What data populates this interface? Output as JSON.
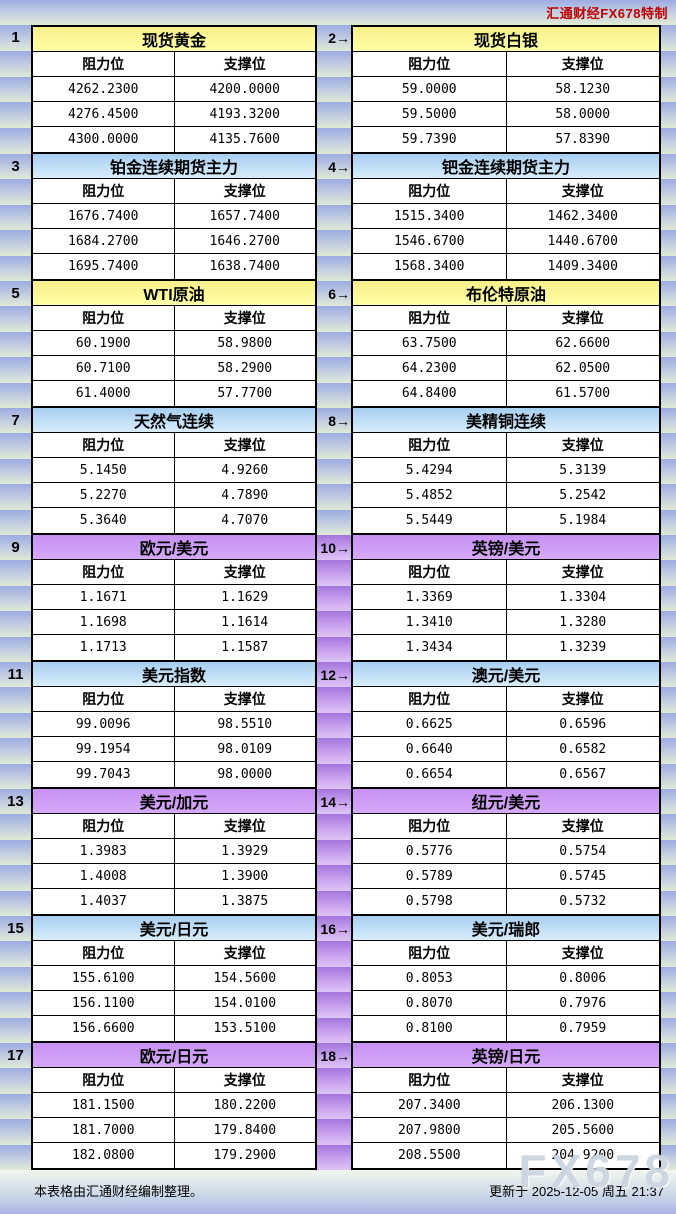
{
  "header": {
    "brand": "汇通财经FX678特制"
  },
  "labels": {
    "resistance": "阻力位",
    "support": "支撑位"
  },
  "footer": {
    "left": "本表格由汇通财经编制整理。",
    "right": "更新于 2025-12-05 周五 21:37"
  },
  "watermark": "FX678",
  "colors": {
    "brand_text": "#c00000",
    "yellow_header": "#fbf493",
    "blue_header": "#a6cef0",
    "purple_header": "#c791f3",
    "band_blue_top": "#9dabe2",
    "band_blue_bottom": "#dfead6",
    "band_purple_top": "#a475dd",
    "band_purple_bottom": "#ddc4f5"
  },
  "pairs": [
    {
      "gutter": "blue",
      "left": {
        "num": "1",
        "title": "现货黄金",
        "theme": "yellow",
        "rows": [
          [
            "4262.2300",
            "4200.0000"
          ],
          [
            "4276.4500",
            "4193.3200"
          ],
          [
            "4300.0000",
            "4135.7600"
          ]
        ]
      },
      "right": {
        "label": "2→",
        "title": "现货白银",
        "theme": "yellow",
        "rows": [
          [
            "59.0000",
            "58.1230"
          ],
          [
            "59.5000",
            "58.0000"
          ],
          [
            "59.7390",
            "57.8390"
          ]
        ]
      }
    },
    {
      "gutter": "blue",
      "left": {
        "num": "3",
        "title": "铂金连续期货主力",
        "theme": "blue",
        "rows": [
          [
            "1676.7400",
            "1657.7400"
          ],
          [
            "1684.2700",
            "1646.2700"
          ],
          [
            "1695.7400",
            "1638.7400"
          ]
        ]
      },
      "right": {
        "label": "4→",
        "title": "钯金连续期货主力",
        "theme": "blue",
        "rows": [
          [
            "1515.3400",
            "1462.3400"
          ],
          [
            "1546.6700",
            "1440.6700"
          ],
          [
            "1568.3400",
            "1409.3400"
          ]
        ]
      }
    },
    {
      "gutter": "blue",
      "left": {
        "num": "5",
        "title": "WTI原油",
        "theme": "yellow",
        "rows": [
          [
            "60.1900",
            "58.9800"
          ],
          [
            "60.7100",
            "58.2900"
          ],
          [
            "61.4000",
            "57.7700"
          ]
        ]
      },
      "right": {
        "label": "6→",
        "title": "布伦特原油",
        "theme": "yellow",
        "rows": [
          [
            "63.7500",
            "62.6600"
          ],
          [
            "64.2300",
            "62.0500"
          ],
          [
            "64.8400",
            "61.5700"
          ]
        ]
      }
    },
    {
      "gutter": "blue",
      "left": {
        "num": "7",
        "title": "天然气连续",
        "theme": "blue",
        "rows": [
          [
            "5.1450",
            "4.9260"
          ],
          [
            "5.2270",
            "4.7890"
          ],
          [
            "5.3640",
            "4.7070"
          ]
        ]
      },
      "right": {
        "label": "8→",
        "title": "美精铜连续",
        "theme": "blue",
        "rows": [
          [
            "5.4294",
            "5.3139"
          ],
          [
            "5.4852",
            "5.2542"
          ],
          [
            "5.5449",
            "5.1984"
          ]
        ]
      }
    },
    {
      "gutter": "purple",
      "left": {
        "num": "9",
        "title": "欧元/美元",
        "theme": "purple",
        "rows": [
          [
            "1.1671",
            "1.1629"
          ],
          [
            "1.1698",
            "1.1614"
          ],
          [
            "1.1713",
            "1.1587"
          ]
        ]
      },
      "right": {
        "label": "10→",
        "title": "英镑/美元",
        "theme": "purple",
        "rows": [
          [
            "1.3369",
            "1.3304"
          ],
          [
            "1.3410",
            "1.3280"
          ],
          [
            "1.3434",
            "1.3239"
          ]
        ]
      }
    },
    {
      "gutter": "purple",
      "left": {
        "num": "11",
        "title": "美元指数",
        "theme": "blue",
        "rows": [
          [
            "99.0096",
            "98.5510"
          ],
          [
            "99.1954",
            "98.0109"
          ],
          [
            "99.7043",
            "98.0000"
          ]
        ]
      },
      "right": {
        "label": "12→",
        "title": "澳元/美元",
        "theme": "blue",
        "rows": [
          [
            "0.6625",
            "0.6596"
          ],
          [
            "0.6640",
            "0.6582"
          ],
          [
            "0.6654",
            "0.6567"
          ]
        ]
      }
    },
    {
      "gutter": "purple",
      "left": {
        "num": "13",
        "title": "美元/加元",
        "theme": "purple",
        "rows": [
          [
            "1.3983",
            "1.3929"
          ],
          [
            "1.4008",
            "1.3900"
          ],
          [
            "1.4037",
            "1.3875"
          ]
        ]
      },
      "right": {
        "label": "14→",
        "title": "纽元/美元",
        "theme": "purple",
        "rows": [
          [
            "0.5776",
            "0.5754"
          ],
          [
            "0.5789",
            "0.5745"
          ],
          [
            "0.5798",
            "0.5732"
          ]
        ]
      }
    },
    {
      "gutter": "purple",
      "left": {
        "num": "15",
        "title": "美元/日元",
        "theme": "blue",
        "rows": [
          [
            "155.6100",
            "154.5600"
          ],
          [
            "156.1100",
            "154.0100"
          ],
          [
            "156.6600",
            "153.5100"
          ]
        ]
      },
      "right": {
        "label": "16→",
        "title": "美元/瑞郎",
        "theme": "blue",
        "rows": [
          [
            "0.8053",
            "0.8006"
          ],
          [
            "0.8070",
            "0.7976"
          ],
          [
            "0.8100",
            "0.7959"
          ]
        ]
      }
    },
    {
      "gutter": "purple",
      "left": {
        "num": "17",
        "title": "欧元/日元",
        "theme": "purple",
        "rows": [
          [
            "181.1500",
            "180.2200"
          ],
          [
            "181.7000",
            "179.8400"
          ],
          [
            "182.0800",
            "179.2900"
          ]
        ]
      },
      "right": {
        "label": "18→",
        "title": "英镑/日元",
        "theme": "purple",
        "rows": [
          [
            "207.3400",
            "206.1300"
          ],
          [
            "207.9800",
            "205.5600"
          ],
          [
            "208.5500",
            "204.9200"
          ]
        ]
      }
    }
  ]
}
